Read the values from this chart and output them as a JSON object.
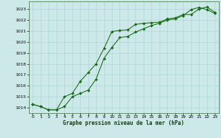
{
  "title": "Graphe pression niveau de la mer (hPa)",
  "bg_color": "#cce8e8",
  "line_color": "#1a6b1a",
  "xlim": [
    -0.5,
    23.5
  ],
  "ylim": [
    1013.5,
    1023.7
  ],
  "xticks": [
    0,
    1,
    2,
    3,
    4,
    5,
    6,
    7,
    8,
    9,
    10,
    11,
    12,
    13,
    14,
    15,
    16,
    17,
    18,
    19,
    20,
    21,
    22,
    23
  ],
  "yticks": [
    1014,
    1015,
    1016,
    1017,
    1018,
    1019,
    1020,
    1021,
    1022,
    1023
  ],
  "line1_x": [
    0,
    1,
    2,
    3,
    4,
    5,
    6,
    7,
    8,
    9,
    10,
    11,
    12,
    13,
    14,
    15,
    16,
    17,
    18,
    19,
    20,
    21,
    22,
    23
  ],
  "line1_y": [
    1014.3,
    1014.1,
    1013.8,
    1013.8,
    1015.0,
    1015.3,
    1016.4,
    1017.2,
    1018.0,
    1019.4,
    1020.95,
    1021.05,
    1021.1,
    1021.6,
    1021.7,
    1021.75,
    1021.8,
    1022.1,
    1022.2,
    1022.5,
    1022.5,
    1023.0,
    1023.2,
    1022.7
  ],
  "line2_x": [
    0,
    1,
    2,
    3,
    4,
    5,
    6,
    7,
    8,
    9,
    10,
    11,
    12,
    13,
    14,
    15,
    16,
    17,
    18,
    19,
    20,
    21,
    22,
    23
  ],
  "line2_y": [
    1014.3,
    1014.1,
    1013.8,
    1013.8,
    1014.1,
    1015.0,
    1015.3,
    1015.6,
    1016.6,
    1018.5,
    1019.5,
    1020.4,
    1020.5,
    1020.9,
    1021.2,
    1021.5,
    1021.7,
    1022.0,
    1022.1,
    1022.4,
    1022.95,
    1023.15,
    1022.95,
    1022.6
  ],
  "grid_color": "#aad4d4",
  "marker": "D",
  "markersize": 2.0,
  "linewidth": 0.8,
  "tick_fontsize": 4.5,
  "xlabel_fontsize": 5.5
}
